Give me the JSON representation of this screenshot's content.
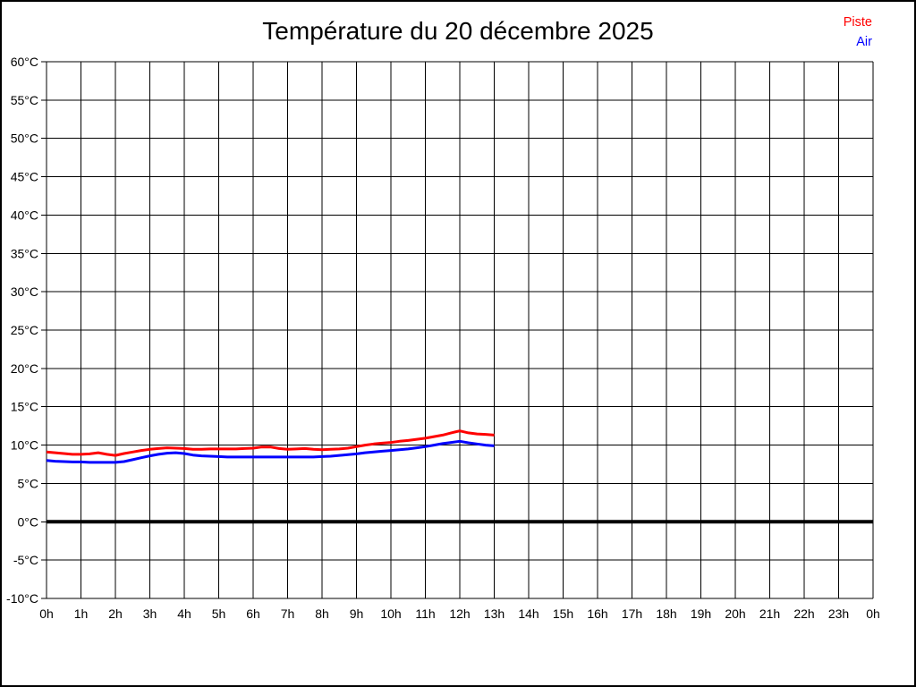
{
  "chart_data": {
    "type": "line",
    "title": "Température du 20 décembre 2025",
    "xlabel": "",
    "ylabel": "",
    "xlim": [
      0,
      24
    ],
    "ylim": [
      -10,
      60
    ],
    "grid": true,
    "legend_position": "top-right",
    "grid_color": "#000000",
    "zero_line": {
      "value": 0,
      "color": "#000000"
    },
    "x_ticks": {
      "values": [
        0,
        1,
        2,
        3,
        4,
        5,
        6,
        7,
        8,
        9,
        10,
        11,
        12,
        13,
        14,
        15,
        16,
        17,
        18,
        19,
        20,
        21,
        22,
        23,
        24
      ],
      "labels": [
        "0h",
        "1h",
        "2h",
        "3h",
        "4h",
        "5h",
        "6h",
        "7h",
        "8h",
        "9h",
        "10h",
        "11h",
        "12h",
        "13h",
        "14h",
        "15h",
        "16h",
        "17h",
        "18h",
        "19h",
        "20h",
        "21h",
        "22h",
        "23h",
        "0h"
      ]
    },
    "y_ticks": {
      "values": [
        60,
        55,
        50,
        45,
        40,
        35,
        30,
        25,
        20,
        15,
        10,
        5,
        0,
        -5,
        -10
      ],
      "labels": [
        "60°C",
        "55°C",
        "50°C",
        "45°C",
        "40°C",
        "35°C",
        "30°C",
        "25°C",
        "20°C",
        "15°C",
        "10°C",
        "5°C",
        "0°C",
        "-5°C",
        "-10°C"
      ]
    },
    "series": [
      {
        "name": "Piste",
        "color": "#ff0000",
        "x": [
          0,
          0.25,
          0.5,
          0.75,
          1,
          1.25,
          1.5,
          1.75,
          2,
          2.25,
          2.5,
          2.75,
          3,
          3.25,
          3.5,
          3.75,
          4,
          4.25,
          4.5,
          4.75,
          5,
          5.25,
          5.5,
          5.75,
          6,
          6.25,
          6.5,
          6.75,
          7,
          7.25,
          7.5,
          7.75,
          8,
          8.25,
          8.5,
          8.75,
          9,
          9.25,
          9.5,
          9.75,
          10,
          10.25,
          10.5,
          10.75,
          11,
          11.25,
          11.5,
          11.75,
          12,
          12.25,
          12.5,
          12.75,
          13
        ],
        "values": [
          9.1,
          9.0,
          8.9,
          8.8,
          8.8,
          8.85,
          9.0,
          8.8,
          8.65,
          8.9,
          9.1,
          9.3,
          9.45,
          9.55,
          9.65,
          9.6,
          9.55,
          9.45,
          9.45,
          9.5,
          9.5,
          9.5,
          9.5,
          9.55,
          9.6,
          9.75,
          9.75,
          9.55,
          9.45,
          9.5,
          9.55,
          9.45,
          9.4,
          9.45,
          9.5,
          9.6,
          9.8,
          10.0,
          10.15,
          10.25,
          10.35,
          10.5,
          10.6,
          10.75,
          10.9,
          11.1,
          11.3,
          11.6,
          11.85,
          11.6,
          11.45,
          11.4,
          11.3
        ]
      },
      {
        "name": "Air",
        "color": "#0000ff",
        "x": [
          0,
          0.25,
          0.5,
          0.75,
          1,
          1.25,
          1.5,
          1.75,
          2,
          2.25,
          2.5,
          2.75,
          3,
          3.25,
          3.5,
          3.75,
          4,
          4.25,
          4.5,
          4.75,
          5,
          5.25,
          5.5,
          5.75,
          6,
          6.25,
          6.5,
          6.75,
          7,
          7.25,
          7.5,
          7.75,
          8,
          8.25,
          8.5,
          8.75,
          9,
          9.25,
          9.5,
          9.75,
          10,
          10.25,
          10.5,
          10.75,
          11,
          11.25,
          11.5,
          11.75,
          12,
          12.25,
          12.5,
          12.75,
          13
        ],
        "values": [
          8.0,
          7.9,
          7.85,
          7.8,
          7.8,
          7.75,
          7.75,
          7.75,
          7.75,
          7.85,
          8.1,
          8.35,
          8.6,
          8.8,
          8.95,
          9.0,
          8.9,
          8.7,
          8.6,
          8.55,
          8.5,
          8.45,
          8.45,
          8.45,
          8.45,
          8.45,
          8.45,
          8.45,
          8.45,
          8.45,
          8.45,
          8.45,
          8.5,
          8.55,
          8.65,
          8.75,
          8.85,
          9.0,
          9.1,
          9.2,
          9.3,
          9.4,
          9.5,
          9.65,
          9.8,
          10.0,
          10.2,
          10.35,
          10.5,
          10.3,
          10.15,
          10.0,
          9.9
        ]
      }
    ]
  }
}
